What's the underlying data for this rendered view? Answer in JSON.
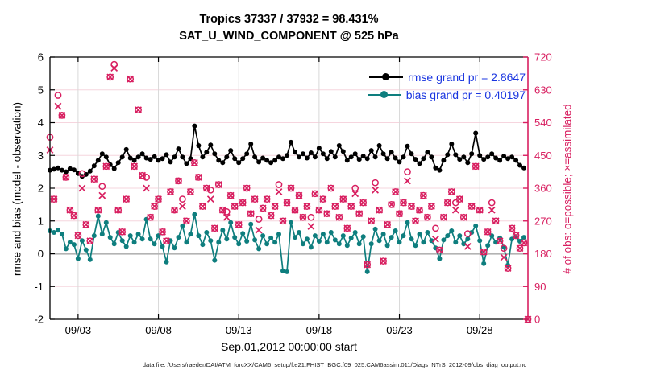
{
  "titles": {
    "line1": "Tropics 37337 / 37932 = 98.431%",
    "line2": "SAT_U_WIND_COMPONENT @ 525 hPa"
  },
  "legend": {
    "rmse_label": "rmse grand pr = 2.8647",
    "bias_label": "bias grand pr = 0.40197",
    "text_color": "#1a35e0"
  },
  "footer": "data file: /Users/raeder/DAI/ATM_forcXX/CAM6_setup/f.e21.FHIST_BGC.f09_025.CAM6assim.011/Diags_NTrS_2012-09/obs_diag_output.nc",
  "colors": {
    "rmse": "#000000",
    "bias": "#0e7e7e",
    "obs": "#d81f60",
    "grid_horizontal": "#f6d5de",
    "grid_vertical": "#d9d9d9",
    "zero_line": "#b3b3b3",
    "axis_black": "#000000"
  },
  "chart_data": {
    "type": "line",
    "title": "Tropics 37337 / 37932 = 98.431%",
    "subtitle": "SAT_U_WIND_COMPONENT @ 525 hPa",
    "xlabel": "Sep.01,2012 00:00:00 start",
    "ylabel_left": "rmse and bias (model - observation)",
    "ylabel_right": "# of obs: o=possible; ×=assimilated",
    "grand_pr": {
      "rmse": 2.8647,
      "bias": 0.40197
    },
    "x_time": {
      "start_day": 0.25,
      "step_days": 0.25,
      "count": 120,
      "origin_label": "Sep.01,2012 00:00:00"
    },
    "xlim_days": [
      0.25,
      30.0
    ],
    "x_ticks": [
      {
        "day": 2,
        "label": "09/03"
      },
      {
        "day": 7,
        "label": "09/08"
      },
      {
        "day": 12,
        "label": "09/13"
      },
      {
        "day": 17,
        "label": "09/18"
      },
      {
        "day": 22,
        "label": "09/23"
      },
      {
        "day": 27,
        "label": "09/28"
      }
    ],
    "ylim_left": [
      -2,
      6
    ],
    "yticks_left": [
      -2,
      -1,
      0,
      1,
      2,
      3,
      4,
      5,
      6
    ],
    "ylim_right": [
      0,
      720
    ],
    "yticks_right": [
      0,
      90,
      180,
      270,
      360,
      450,
      540,
      630,
      720
    ],
    "grid": true,
    "legend_position": "top-right-inside",
    "series": [
      {
        "name": "rmse",
        "axis": "left",
        "style": "line-with-dots",
        "values": [
          2.55,
          2.58,
          2.62,
          2.55,
          2.5,
          2.6,
          2.56,
          2.45,
          2.36,
          2.42,
          2.52,
          2.68,
          2.85,
          3.05,
          2.95,
          2.72,
          2.6,
          2.78,
          2.95,
          3.18,
          2.92,
          2.85,
          2.95,
          3.05,
          2.92,
          2.88,
          2.96,
          2.85,
          2.9,
          3.02,
          2.8,
          2.95,
          3.2,
          2.95,
          2.75,
          2.9,
          3.9,
          3.3,
          2.95,
          3.1,
          3.32,
          3.05,
          2.85,
          2.78,
          2.95,
          3.15,
          2.9,
          2.78,
          2.9,
          3.05,
          3.35,
          2.95,
          2.8,
          2.92,
          2.85,
          2.78,
          2.85,
          2.95,
          2.9,
          3.0,
          3.4,
          3.1,
          2.95,
          3.05,
          2.92,
          3.08,
          2.95,
          3.22,
          3.05,
          2.9,
          3.12,
          2.95,
          3.3,
          3.12,
          2.85,
          2.95,
          3.05,
          2.88,
          2.98,
          2.9,
          3.15,
          2.95,
          3.3,
          3.05,
          2.9,
          3.1,
          2.92,
          2.8,
          2.95,
          3.28,
          3.05,
          2.88,
          2.75,
          2.9,
          3.1,
          2.95,
          2.62,
          2.55,
          2.85,
          3.02,
          3.35,
          3.02,
          2.88,
          2.95,
          2.78,
          3.05,
          3.68,
          3.0,
          2.88,
          2.95,
          3.05,
          2.92,
          2.85,
          2.98,
          2.9,
          2.95,
          2.85,
          2.7,
          2.62,
          null
        ]
      },
      {
        "name": "bias",
        "axis": "left",
        "style": "line-with-dots",
        "values": [
          0.7,
          0.65,
          0.72,
          0.6,
          0.15,
          0.35,
          0.28,
          -0.15,
          0.4,
          0.12,
          -0.18,
          0.55,
          1.15,
          0.6,
          0.95,
          0.5,
          0.3,
          0.65,
          0.4,
          0.22,
          0.55,
          0.35,
          0.6,
          0.45,
          1.05,
          0.45,
          0.3,
          0.55,
          0.22,
          -0.25,
          0.4,
          0.18,
          0.5,
          0.85,
          0.35,
          0.6,
          1.2,
          0.55,
          0.28,
          0.65,
          0.4,
          -0.2,
          0.35,
          0.72,
          0.45,
          0.95,
          0.5,
          0.3,
          0.62,
          0.38,
          0.9,
          0.42,
          0.15,
          0.55,
          0.3,
          0.48,
          0.35,
          0.6,
          -0.52,
          -0.55,
          0.95,
          0.5,
          0.65,
          0.3,
          0.45,
          0.2,
          0.55,
          0.38,
          0.6,
          0.35,
          0.65,
          0.42,
          0.3,
          0.55,
          0.25,
          0.48,
          0.65,
          0.3,
          0.52,
          -0.55,
          0.3,
          0.75,
          0.4,
          0.6,
          0.25,
          0.5,
          0.7,
          0.35,
          0.55,
          0.95,
          0.45,
          0.25,
          0.6,
          0.35,
          0.65,
          0.4,
          0.18,
          -0.15,
          0.42,
          0.55,
          0.7,
          0.35,
          0.55,
          0.3,
          0.45,
          0.65,
          0.85,
          0.4,
          -0.3,
          0.25,
          0.55,
          0.35,
          0.48,
          0.2,
          -0.35,
          0.45,
          0.52,
          0.38,
          0.5,
          null
        ]
      },
      {
        "name": "obs_possible",
        "axis": "right",
        "style": "scatter-circle",
        "values": [
          500,
          330,
          615,
          560,
          390,
          300,
          285,
          230,
          400,
          260,
          215,
          385,
          300,
          365,
          420,
          665,
          700,
          300,
          240,
          330,
          660,
          420,
          575,
          395,
          390,
          280,
          310,
          330,
          240,
          215,
          350,
          300,
          380,
          330,
          270,
          350,
          430,
          390,
          310,
          360,
          355,
          250,
          370,
          300,
          295,
          340,
          310,
          260,
          320,
          360,
          290,
          330,
          275,
          305,
          330,
          285,
          310,
          370,
          270,
          320,
          360,
          300,
          340,
          280,
          310,
          280,
          345,
          300,
          330,
          290,
          360,
          310,
          280,
          330,
          250,
          310,
          360,
          290,
          320,
          150,
          270,
          375,
          300,
          160,
          260,
          315,
          350,
          290,
          320,
          405,
          310,
          270,
          300,
          340,
          280,
          310,
          250,
          190,
          280,
          320,
          350,
          320,
          330,
          280,
          235,
          310,
          420,
          300,
          185,
          240,
          320,
          270,
          215,
          195,
          140,
          250,
          230,
          195,
          210,
          0
        ]
      },
      {
        "name": "obs_assimilated",
        "axis": "right",
        "style": "scatter-cross",
        "values": [
          465,
          330,
          585,
          560,
          390,
          300,
          285,
          230,
          360,
          260,
          215,
          385,
          300,
          340,
          420,
          665,
          690,
          300,
          240,
          330,
          660,
          420,
          575,
          395,
          360,
          280,
          310,
          330,
          240,
          215,
          350,
          300,
          380,
          310,
          270,
          350,
          430,
          390,
          310,
          360,
          330,
          250,
          370,
          300,
          280,
          340,
          310,
          260,
          320,
          360,
          290,
          330,
          245,
          305,
          330,
          285,
          310,
          350,
          270,
          320,
          360,
          300,
          340,
          280,
          310,
          255,
          345,
          300,
          330,
          290,
          360,
          310,
          280,
          330,
          250,
          310,
          345,
          290,
          320,
          150,
          270,
          355,
          300,
          160,
          260,
          315,
          350,
          290,
          320,
          380,
          310,
          270,
          300,
          340,
          280,
          310,
          220,
          190,
          280,
          320,
          350,
          300,
          330,
          280,
          200,
          310,
          420,
          300,
          185,
          240,
          300,
          270,
          215,
          170,
          140,
          250,
          230,
          195,
          210,
          0
        ]
      }
    ]
  }
}
